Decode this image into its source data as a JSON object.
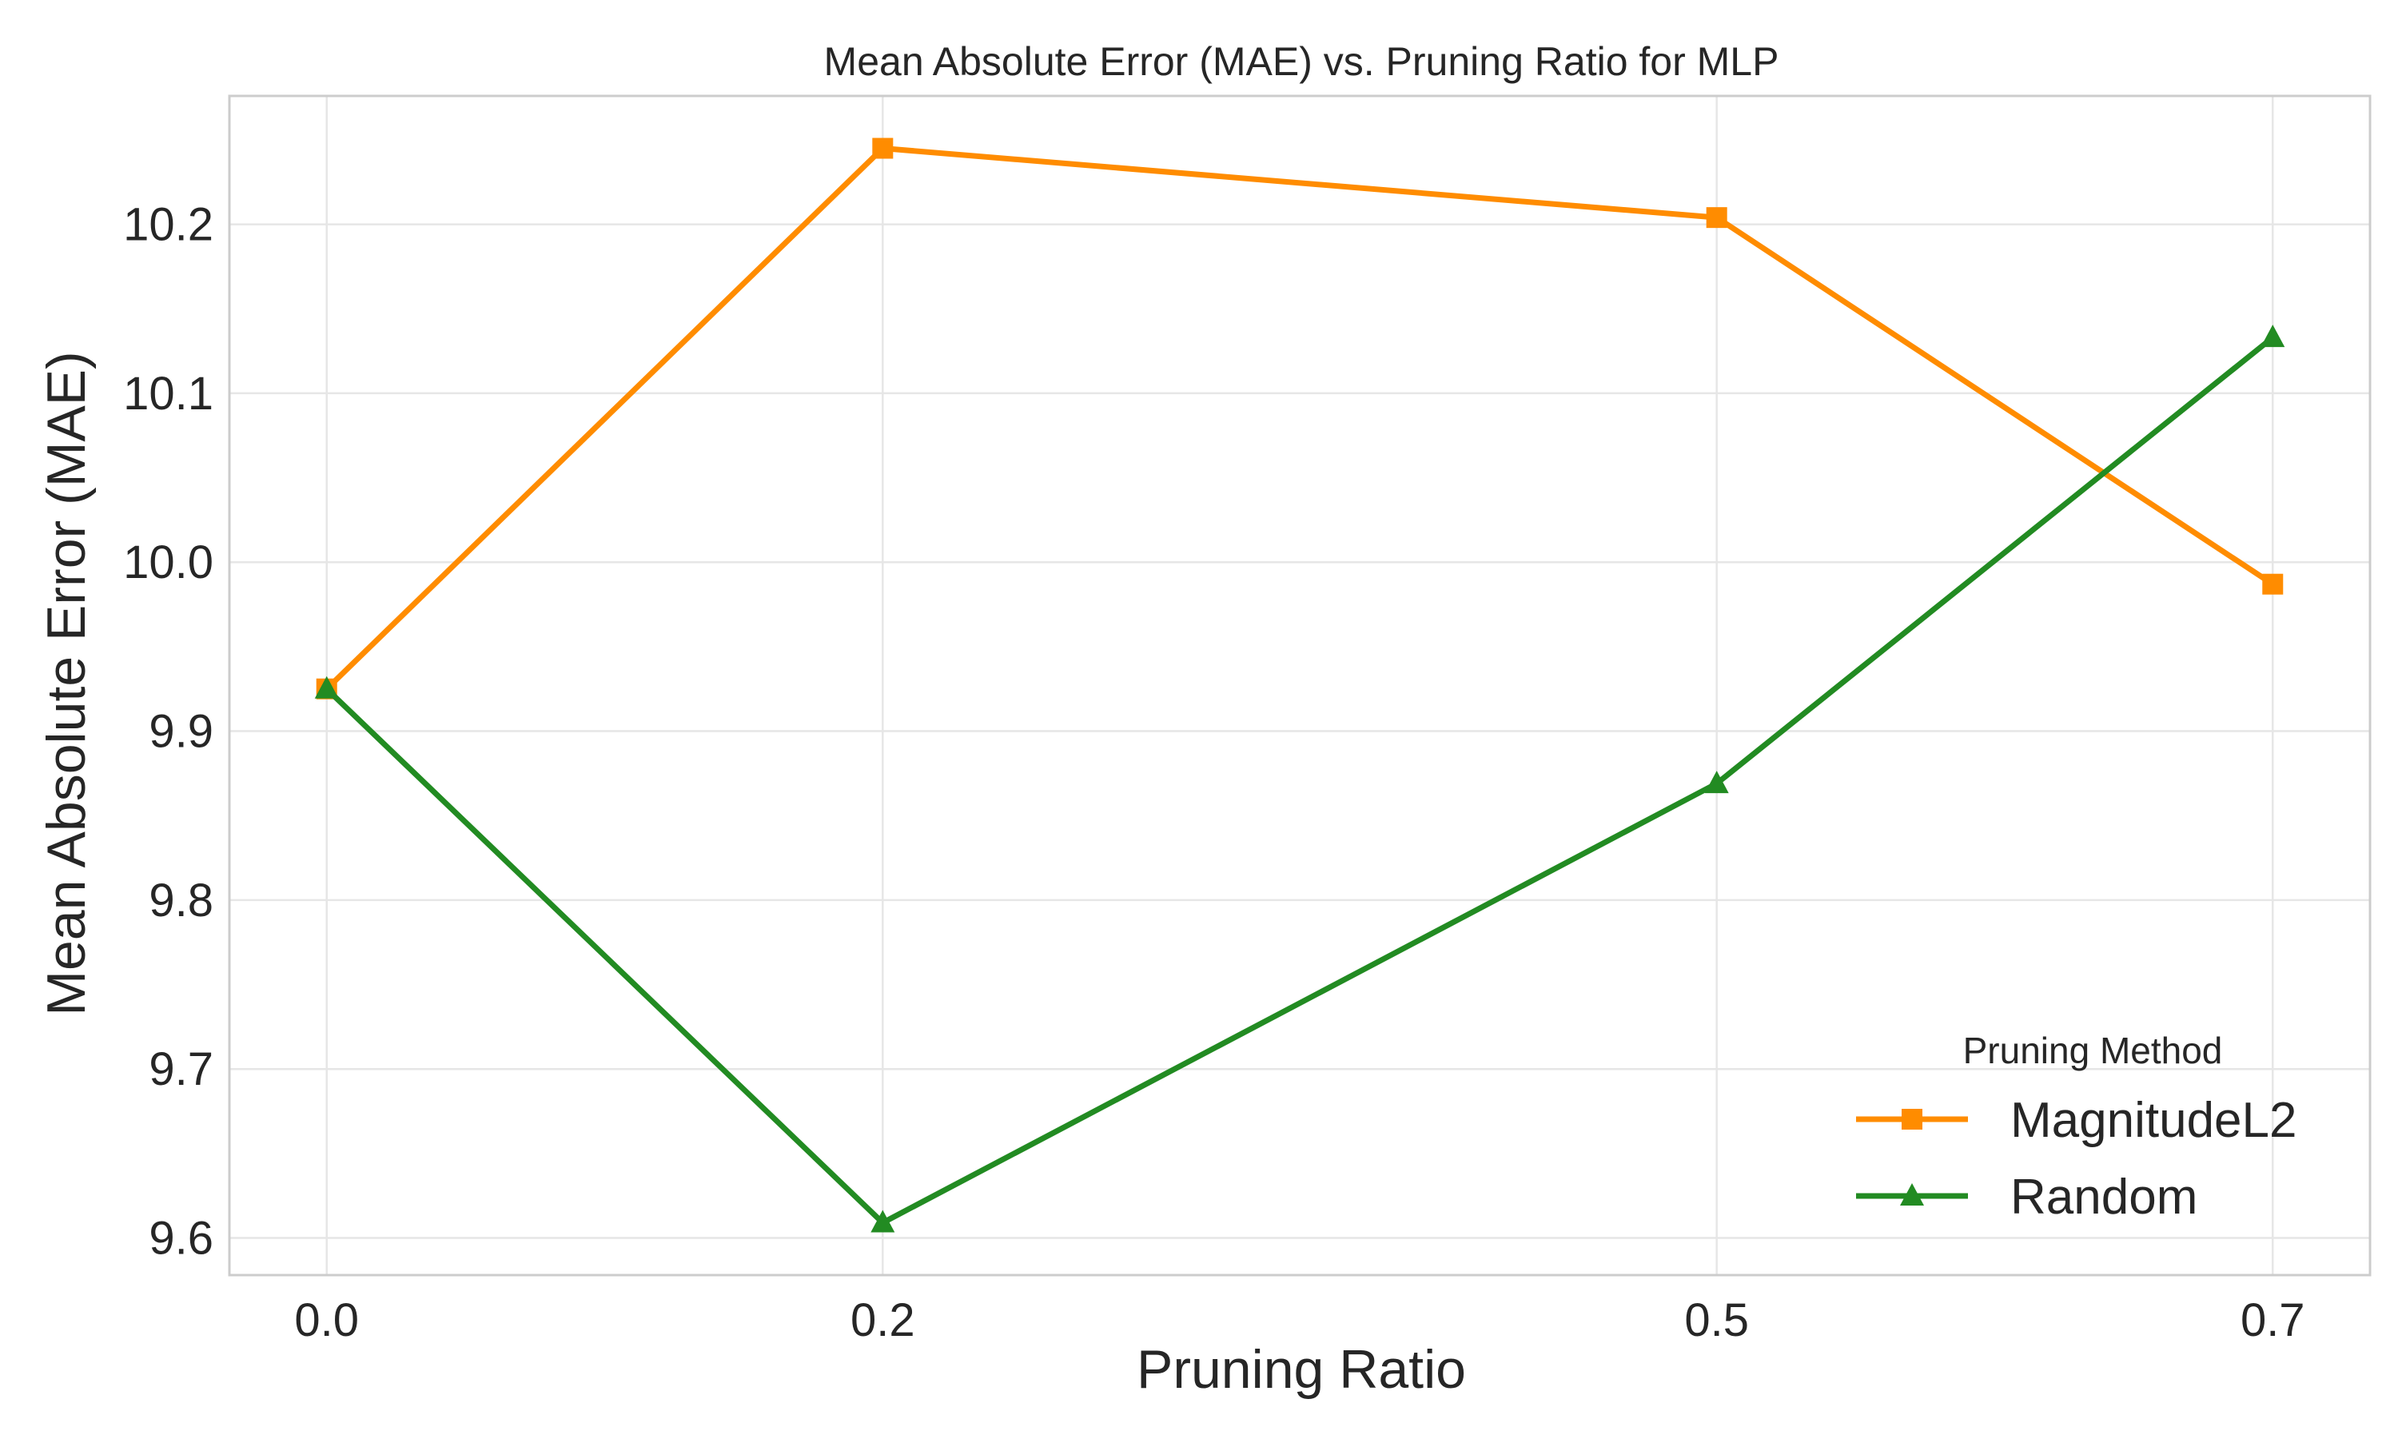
{
  "chart_data": {
    "type": "line",
    "title": "Mean Absolute Error (MAE) vs. Pruning Ratio for MLP",
    "xlabel": "Pruning Ratio",
    "ylabel": "Mean Absolute Error (MAE)",
    "x": [
      0.0,
      0.2,
      0.5,
      0.7
    ],
    "x_tick_labels": [
      "0.0",
      "0.2",
      "0.5",
      "0.7"
    ],
    "xlim": [
      -0.035,
      0.735
    ],
    "ylim": [
      9.578,
      10.276
    ],
    "y_ticks": [
      9.6,
      9.7,
      9.8,
      9.9,
      10.0,
      10.1,
      10.2
    ],
    "y_tick_labels": [
      "9.6",
      "9.7",
      "9.8",
      "9.9",
      "10.0",
      "10.1",
      "10.2"
    ],
    "grid": true,
    "legend": {
      "title": "Pruning Method",
      "position": "lower-right"
    },
    "series": [
      {
        "name": "MagnitudeL2",
        "values": [
          9.925,
          10.245,
          10.204,
          9.987
        ],
        "color": "#ff8c00",
        "marker": "square"
      },
      {
        "name": "Random",
        "values": [
          9.925,
          9.609,
          9.869,
          10.133
        ],
        "color": "#228b22",
        "marker": "triangle"
      }
    ]
  }
}
